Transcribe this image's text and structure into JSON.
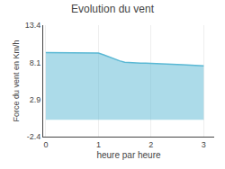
{
  "chart_data": {
    "type": "area",
    "title": "Evolution du vent",
    "x_label": "heure par heure",
    "y_label": "Force du vent en Km/h",
    "x": [
      0.0,
      0.1,
      0.2,
      0.3,
      0.4,
      0.5,
      0.6,
      0.7,
      0.8,
      0.9,
      1.0,
      1.1,
      1.2,
      1.3,
      1.4,
      1.5,
      1.6,
      1.7,
      1.8,
      1.9,
      2.0,
      2.1,
      2.2,
      2.3,
      2.4,
      2.5,
      2.6,
      2.7,
      2.8,
      2.9,
      3.0
    ],
    "values": [
      9.5,
      9.5,
      9.5,
      9.5,
      9.5,
      9.5,
      9.5,
      9.5,
      9.5,
      9.5,
      9.45,
      9.2,
      8.9,
      8.6,
      8.35,
      8.15,
      8.08,
      8.05,
      8.03,
      8.02,
      8.0,
      7.95,
      7.92,
      7.88,
      7.85,
      7.82,
      7.78,
      7.75,
      7.72,
      7.68,
      7.65
    ],
    "color": "#5ab8d4",
    "xlim": [
      -0.05,
      3.2
    ],
    "xticks": [
      0,
      1,
      2,
      3
    ],
    "ylim": [
      -2.4,
      13.4
    ],
    "yticks": [
      -2.4,
      2.9,
      8.1,
      13.4
    ],
    "grid": "x"
  }
}
